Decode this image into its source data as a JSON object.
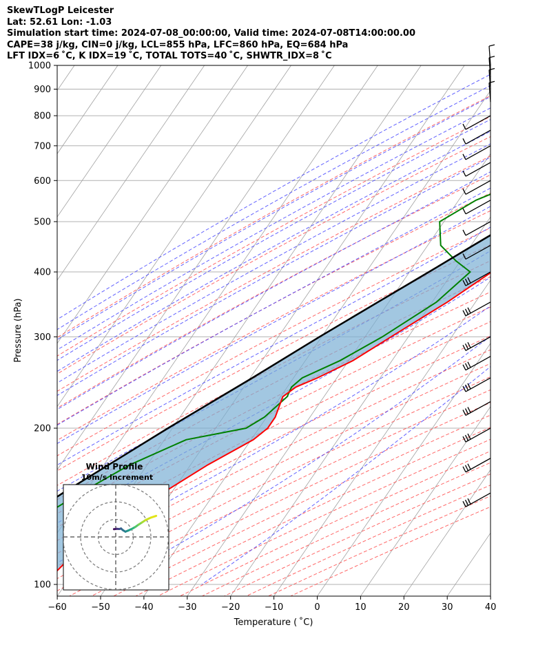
{
  "header": {
    "line1": "SkewTLogP Leicester",
    "line2": "Lat: 52.61   Lon: -1.03",
    "line3": "Simulation start time: 2024-07-08_00:00:00, Valid time: 2024-07-08T14:00:00.00",
    "line4": "CAPE=38 j/kg, CIN=0 j/kg, LCL=855 hPa, LFC=860 hPa, EQ=684 hPa",
    "line5": "LFT IDX=6 ˚C, K IDX=19 ˚C, TOTAL TOTS=40 ˚C, SHWTR_IDX=8 ˚C"
  },
  "chart_data": {
    "type": "line",
    "subtype": "skew-t log-p",
    "xlabel": "Temperature ( ˚C)",
    "ylabel": "Pressure (hPa)",
    "xlim": [
      -60,
      40
    ],
    "ylim": [
      1050,
      100
    ],
    "yscale": "log",
    "xticks": [
      -60,
      -50,
      -40,
      -30,
      -20,
      -10,
      0,
      10,
      20,
      30,
      40
    ],
    "yticks": [
      1000,
      900,
      800,
      700,
      600,
      500,
      400,
      300,
      200,
      100
    ],
    "grid": true,
    "colors": {
      "temperature": "#ff0000",
      "dewpoint": "#008000",
      "parcel": "#000000",
      "cape_fill": "#7bafd4",
      "dry_adiabats": "#ff6666",
      "moist_adiabats": "#5555ff",
      "isotherms": "#999999"
    },
    "series": [
      {
        "name": "temperature",
        "p": [
          1000,
          950,
          900,
          870,
          850,
          800,
          750,
          700,
          650,
          600,
          550,
          500,
          450,
          400,
          350,
          300,
          270,
          250,
          240,
          230,
          210,
          200,
          190,
          170,
          150,
          130,
          110,
          100
        ],
        "t": [
          20,
          17,
          14,
          12,
          11,
          9.5,
          8,
          6.5,
          5,
          3,
          0.5,
          -3,
          -6.5,
          -11,
          -16.5,
          -24,
          -29,
          -34.5,
          -38,
          -39.5,
          -38,
          -38,
          -39.5,
          -46,
          -52,
          -58,
          -63.5,
          -65
        ]
      },
      {
        "name": "dewpoint",
        "p": [
          1000,
          950,
          900,
          850,
          800,
          750,
          700,
          650,
          600,
          550,
          500,
          450,
          420,
          400,
          350,
          300,
          270,
          250,
          240,
          230,
          210,
          200,
          190,
          170,
          150,
          130,
          110,
          100
        ],
        "t": [
          10,
          10,
          10,
          9,
          7,
          4,
          0,
          -7,
          -18,
          -26,
          -31,
          -27,
          -21,
          -16,
          -19,
          -26,
          -32,
          -38,
          -39,
          -38.5,
          -40.5,
          -43,
          -55,
          -64,
          -71,
          -78,
          -85,
          -88
        ]
      },
      {
        "name": "parcel",
        "p": [
          1000,
          950,
          900,
          870,
          855,
          800,
          750,
          700,
          650,
          600,
          550,
          500,
          450,
          400,
          350,
          300,
          250,
          200,
          190,
          150,
          100
        ],
        "t": [
          19.5,
          16,
          12.5,
          10.2,
          10,
          7.8,
          5.2,
          2.3,
          -1,
          -4.8,
          -9,
          -14,
          -19.5,
          -25.5,
          -32.5,
          -40.5,
          -49.5,
          -61,
          -63.5,
          -75,
          -93
        ]
      }
    ],
    "wind_barbs": {
      "levels_hPa": [
        150,
        175,
        200,
        225,
        250,
        275,
        300,
        350,
        400,
        450,
        500,
        550,
        600,
        650,
        700,
        750,
        800,
        850,
        900,
        950,
        1000
      ]
    },
    "hodograph": {
      "title": "Wind Profile",
      "subtitle": "10m/s increment",
      "rings": [
        10,
        20,
        30
      ]
    }
  }
}
